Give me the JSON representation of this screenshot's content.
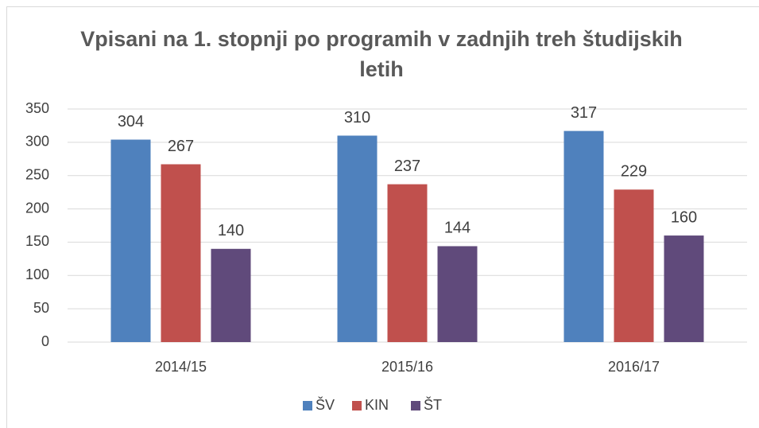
{
  "chart_data": {
    "type": "bar",
    "title": "Vpisani na 1. stopnji po programih v zadnjih treh študijskih letih",
    "categories": [
      "2014/15",
      "2015/16",
      "2016/17"
    ],
    "series": [
      {
        "name": "ŠV",
        "color": "#4f81bd",
        "values": [
          304,
          310,
          317
        ]
      },
      {
        "name": "KIN",
        "color": "#c0504d",
        "values": [
          267,
          237,
          229
        ]
      },
      {
        "name": "ŠT",
        "color": "#604a7b",
        "values": [
          140,
          144,
          160
        ]
      }
    ],
    "ylim": [
      0,
      350
    ],
    "yticks": [
      0,
      50,
      100,
      150,
      200,
      250,
      300,
      350
    ],
    "grid": true,
    "legend": "bottom"
  }
}
